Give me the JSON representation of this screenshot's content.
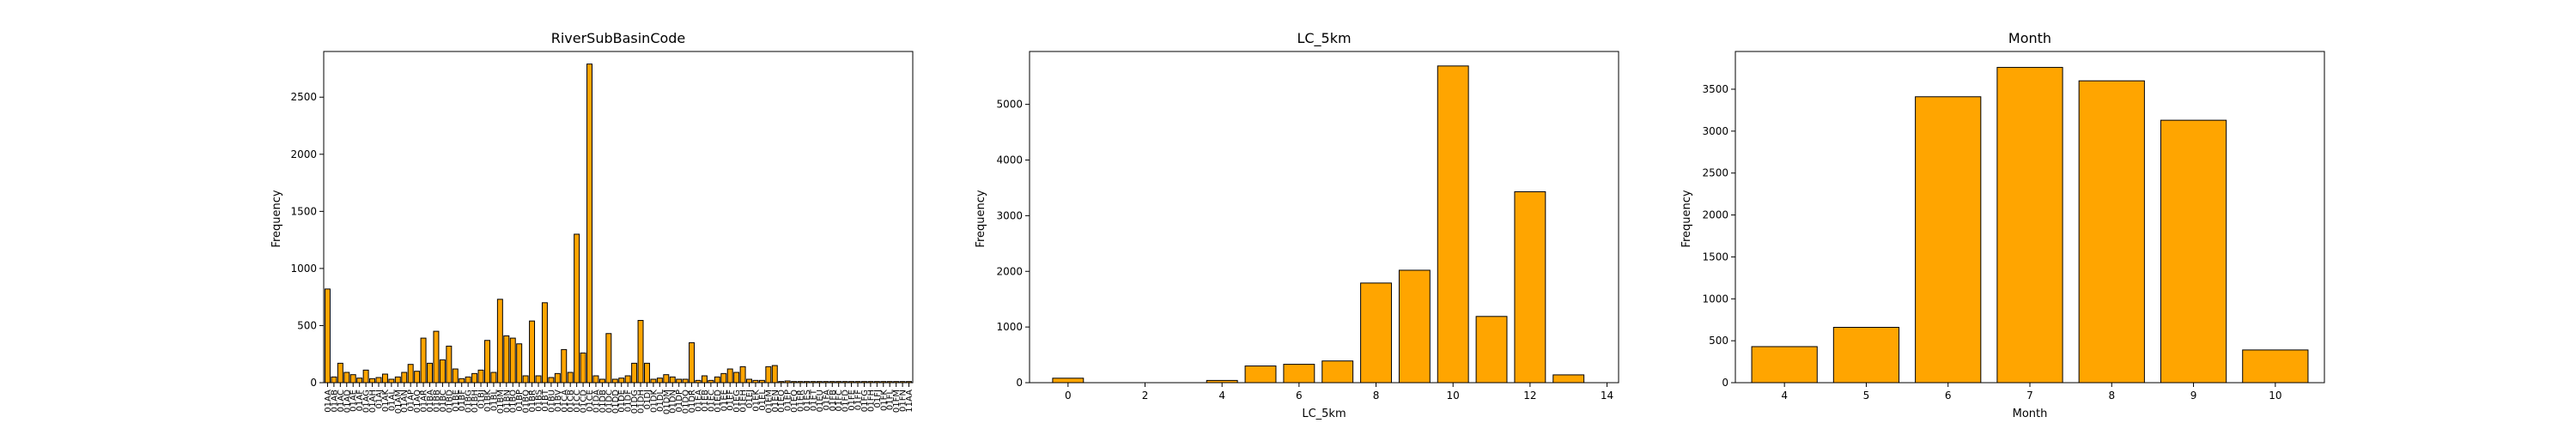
{
  "chart_data": [
    {
      "type": "bar",
      "title": "RiverSubBasinCode",
      "xlabel": "",
      "ylabel": "Frequency",
      "ylim": [
        0,
        2900
      ],
      "yticks": [
        0,
        500,
        1000,
        1500,
        2000,
        2500
      ],
      "categories": [
        "01AA",
        "01AB",
        "01AC",
        "01AD",
        "01AE",
        "01AF",
        "01AG",
        "01AH",
        "01AJ",
        "01AK",
        "01AL",
        "01AM",
        "01AN",
        "01AP",
        "01AQ",
        "01AR",
        "01BA",
        "01BB",
        "01BC",
        "01BD",
        "01BE",
        "01BF",
        "01BG",
        "01BH",
        "01BJ",
        "01BK",
        "01BL",
        "01BM",
        "01BN",
        "01BO",
        "01BP",
        "01BQ",
        "01BR",
        "01BS",
        "01BT",
        "01BU",
        "01BV",
        "01CA",
        "01CB",
        "01CC",
        "01CD",
        "01CE",
        "01DA",
        "01DB",
        "01DC",
        "01DD",
        "01DE",
        "01DF",
        "01DG",
        "01DH",
        "01DJ",
        "01DK",
        "01DL",
        "01DM",
        "01DN",
        "01DP",
        "01DQ",
        "01DR",
        "01EA",
        "01EB",
        "01EC",
        "01ED",
        "01EE",
        "01EF",
        "01EG",
        "01EH",
        "01EJ",
        "01EK",
        "01EL",
        "01EM",
        "01EN",
        "01EO",
        "01EP",
        "01EQ",
        "01ER",
        "01ES",
        "01ET",
        "01EU",
        "01FA",
        "01FB",
        "01FC",
        "01FD",
        "01FE",
        "01FF",
        "01FG",
        "01FH",
        "01FJ",
        "01FK",
        "01FL",
        "01FM",
        "01FN",
        "11AA"
      ],
      "values": [
        820,
        50,
        170,
        90,
        70,
        40,
        110,
        35,
        45,
        75,
        30,
        50,
        90,
        160,
        100,
        390,
        170,
        450,
        200,
        320,
        120,
        35,
        50,
        80,
        110,
        370,
        90,
        730,
        410,
        390,
        340,
        60,
        540,
        60,
        700,
        45,
        80,
        290,
        90,
        1300,
        260,
        2790,
        60,
        30,
        430,
        30,
        40,
        60,
        170,
        545,
        170,
        30,
        40,
        70,
        50,
        30,
        30,
        350,
        20,
        60,
        20,
        50,
        80,
        120,
        90,
        140,
        30,
        20,
        20,
        140,
        150,
        10,
        15,
        10,
        10,
        10,
        10,
        10,
        10,
        10,
        10,
        10,
        10,
        10,
        10,
        10,
        10,
        10,
        10,
        10,
        10,
        10
      ],
      "bar_color": "#FFA500",
      "edge_color": "#000000"
    },
    {
      "type": "bar",
      "title": "LC_5km",
      "xlabel": "LC_5km",
      "ylabel": "Frequency",
      "xlim": [
        -1,
        14.3
      ],
      "ylim": [
        0,
        5950
      ],
      "xticks": [
        0,
        2,
        4,
        6,
        8,
        10,
        12,
        14
      ],
      "yticks": [
        0,
        1000,
        2000,
        3000,
        4000,
        5000
      ],
      "x": [
        0,
        4,
        5,
        6,
        7,
        8,
        9,
        10,
        11,
        12,
        13
      ],
      "values": [
        80,
        40,
        300,
        330,
        390,
        1790,
        2020,
        5690,
        1190,
        3430,
        140
      ],
      "bar_color": "#FFA500",
      "edge_color": "#000000"
    },
    {
      "type": "bar",
      "title": "Month",
      "xlabel": "Month",
      "ylabel": "Frequency",
      "ylim": [
        0,
        3950
      ],
      "yticks": [
        0,
        500,
        1000,
        1500,
        2000,
        2500,
        3000,
        3500
      ],
      "categories": [
        "4",
        "5",
        "6",
        "7",
        "8",
        "9",
        "10"
      ],
      "values": [
        430,
        660,
        3410,
        3760,
        3600,
        3130,
        390
      ],
      "bar_color": "#FFA500",
      "edge_color": "#000000"
    }
  ]
}
